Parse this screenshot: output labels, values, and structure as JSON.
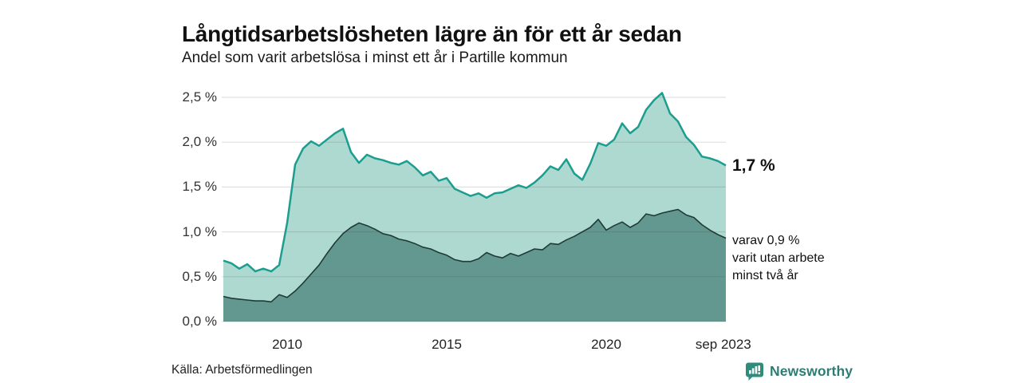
{
  "header": {
    "title": "Långtidsarbetslösheten lägre än för ett år sedan",
    "subtitle": "Andel som varit arbetslösa i minst ett år i Partille kommun"
  },
  "annotations": {
    "latest_total": "1,7 %",
    "two_year_lines": [
      "varav 0,9 %",
      "varit utan arbete",
      "minst två år"
    ]
  },
  "footer": {
    "source": "Källa: Arbetsförmedlingen",
    "brand": "Newsworthy"
  },
  "colors": {
    "total_line": "#1b9e8f",
    "total_fill": "#aed9d1",
    "two_year_line": "#1f3b36",
    "two_year_fill": "#639890",
    "gridline": "rgba(60,60,60,0.16)",
    "brand_teal": "#2e8c7d"
  },
  "chart_data": {
    "type": "area",
    "title": "Långtidsarbetslösheten lägre än för ett år sedan",
    "subtitle": "Andel som varit arbetslösa i minst ett år i Partille kommun",
    "xlabel": "",
    "ylabel": "",
    "xlim": [
      2008,
      2023.75
    ],
    "ylim": [
      0,
      2.5
    ],
    "grid": "horizontal",
    "legend": "none",
    "y_ticks": [
      {
        "value": 2.5,
        "label": "2,5 %"
      },
      {
        "value": 2.0,
        "label": "2,0 %"
      },
      {
        "value": 1.5,
        "label": "1,5 %"
      },
      {
        "value": 1.0,
        "label": "1,0 %"
      },
      {
        "value": 0.5,
        "label": "0,5 %"
      },
      {
        "value": 0.0,
        "label": "0,0 %"
      }
    ],
    "x_ticks": [
      {
        "value": 2010,
        "label": "2010"
      },
      {
        "value": 2015,
        "label": "2015"
      },
      {
        "value": 2020,
        "label": "2020"
      },
      {
        "value": 2023.67,
        "label": "sep 2023"
      }
    ],
    "x": [
      2008,
      2008.25,
      2008.5,
      2008.75,
      2009,
      2009.25,
      2009.5,
      2009.75,
      2010,
      2010.25,
      2010.5,
      2010.75,
      2011,
      2011.25,
      2011.5,
      2011.75,
      2012,
      2012.25,
      2012.5,
      2012.75,
      2013,
      2013.25,
      2013.5,
      2013.75,
      2014,
      2014.25,
      2014.5,
      2014.75,
      2015,
      2015.25,
      2015.5,
      2015.75,
      2016,
      2016.25,
      2016.5,
      2016.75,
      2017,
      2017.25,
      2017.5,
      2017.75,
      2018,
      2018.25,
      2018.5,
      2018.75,
      2019,
      2019.25,
      2019.5,
      2019.75,
      2020,
      2020.25,
      2020.5,
      2020.75,
      2021,
      2021.25,
      2021.5,
      2021.75,
      2022,
      2022.25,
      2022.5,
      2022.75,
      2023,
      2023.25,
      2023.5,
      2023.75
    ],
    "series": [
      {
        "name": "Arbetslösa minst ett år",
        "latest_value": 1.7,
        "values": [
          0.68,
          0.65,
          0.59,
          0.64,
          0.56,
          0.59,
          0.56,
          0.63,
          1.1,
          1.75,
          1.93,
          2.01,
          1.96,
          2.03,
          2.1,
          2.15,
          1.89,
          1.77,
          1.86,
          1.82,
          1.8,
          1.77,
          1.75,
          1.79,
          1.72,
          1.63,
          1.67,
          1.57,
          1.6,
          1.48,
          1.44,
          1.4,
          1.43,
          1.38,
          1.43,
          1.44,
          1.48,
          1.52,
          1.49,
          1.55,
          1.63,
          1.73,
          1.69,
          1.81,
          1.65,
          1.58,
          1.76,
          1.99,
          1.96,
          2.03,
          2.21,
          2.1,
          2.17,
          2.36,
          2.47,
          2.55,
          2.32,
          2.23,
          2.06,
          1.97,
          1.84,
          1.82,
          1.79,
          1.74
        ]
      },
      {
        "name": "Arbetslösa minst två år",
        "latest_value": 0.9,
        "values": [
          0.28,
          0.26,
          0.25,
          0.24,
          0.23,
          0.23,
          0.22,
          0.3,
          0.27,
          0.34,
          0.43,
          0.53,
          0.63,
          0.76,
          0.88,
          0.98,
          1.05,
          1.1,
          1.07,
          1.03,
          0.98,
          0.96,
          0.92,
          0.9,
          0.87,
          0.83,
          0.81,
          0.77,
          0.74,
          0.69,
          0.67,
          0.67,
          0.7,
          0.77,
          0.73,
          0.71,
          0.76,
          0.73,
          0.77,
          0.81,
          0.8,
          0.87,
          0.86,
          0.91,
          0.95,
          1.0,
          1.05,
          1.14,
          1.02,
          1.07,
          1.11,
          1.05,
          1.1,
          1.2,
          1.18,
          1.21,
          1.23,
          1.25,
          1.19,
          1.16,
          1.08,
          1.02,
          0.97,
          0.93
        ]
      }
    ]
  }
}
